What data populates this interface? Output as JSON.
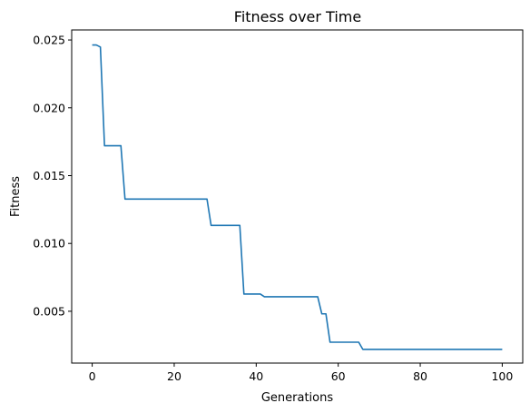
{
  "chart_data": {
    "type": "line",
    "title": "Fitness over Time",
    "xlabel": "Generations",
    "ylabel": "Fitness",
    "xlim": [
      -5,
      105
    ],
    "ylim": [
      0.00118,
      0.02574
    ],
    "xticks": [
      0,
      20,
      40,
      60,
      80,
      100
    ],
    "xtick_labels": [
      "0",
      "20",
      "40",
      "60",
      "80",
      "100"
    ],
    "yticks": [
      0.005,
      0.01,
      0.015,
      0.02,
      0.025
    ],
    "ytick_labels": [
      "0.005",
      "0.010",
      "0.015",
      "0.020",
      "0.025"
    ],
    "grid": false,
    "series": [
      {
        "color": "#1f77b4",
        "x": [
          0,
          1,
          2,
          3,
          7,
          8,
          28,
          29,
          36,
          37,
          41,
          42,
          55,
          56,
          57,
          58,
          65,
          66,
          100
        ],
        "y": [
          0.02463,
          0.02463,
          0.02448,
          0.0172,
          0.0172,
          0.01327,
          0.01327,
          0.01133,
          0.01133,
          0.00627,
          0.00627,
          0.00607,
          0.00607,
          0.00481,
          0.00481,
          0.00272,
          0.00272,
          0.00219,
          0.00219
        ]
      }
    ]
  }
}
